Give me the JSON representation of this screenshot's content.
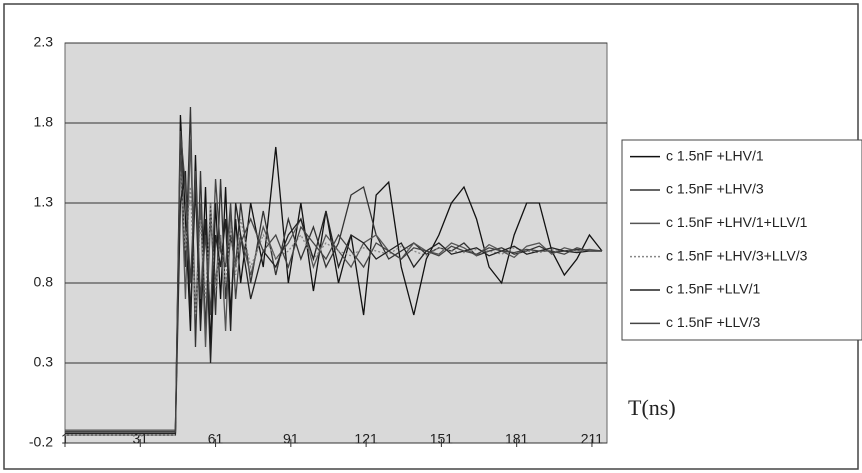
{
  "chart_data": {
    "type": "line",
    "annotation": "T(ns)",
    "x": [
      1,
      11,
      21,
      31,
      41,
      45,
      47,
      49,
      51,
      53,
      55,
      57,
      59,
      61,
      63,
      65,
      67,
      69,
      71,
      75,
      80,
      85,
      90,
      95,
      100,
      105,
      110,
      115,
      120,
      125,
      130,
      135,
      140,
      145,
      150,
      155,
      160,
      165,
      170,
      175,
      180,
      185,
      190,
      195,
      200,
      205,
      210,
      215
    ],
    "xlim": [
      1,
      217
    ],
    "xticks": [
      1,
      31,
      61,
      91,
      121,
      151,
      181,
      211
    ],
    "ylim": [
      -0.2,
      2.3
    ],
    "yticks": [
      -0.2,
      0.3,
      0.8,
      1.3,
      1.8,
      2.3
    ],
    "grid": true,
    "legend": "right",
    "plot_background": "#d9d9d9",
    "series": [
      {
        "name": "c 1.5nF +LHV/1",
        "color": "#111111",
        "line_style": "solid",
        "values": [
          -0.13,
          -0.13,
          -0.13,
          -0.13,
          -0.13,
          -0.13,
          1.85,
          1.2,
          0.5,
          1.6,
          0.6,
          1.4,
          0.4,
          1.3,
          0.7,
          1.4,
          0.6,
          1.2,
          0.8,
          1.3,
          0.9,
          1.65,
          0.8,
          1.3,
          0.75,
          1.25,
          0.8,
          1.1,
          0.6,
          1.35,
          1.43,
          0.9,
          0.6,
          0.95,
          1.1,
          1.3,
          1.4,
          1.2,
          0.9,
          0.8,
          1.1,
          1.3,
          1.3,
          1.0,
          0.85,
          0.95,
          1.1,
          1.0
        ]
      },
      {
        "name": "c 1.5nF +LHV/3",
        "color": "#333333",
        "line_style": "solid",
        "values": [
          -0.15,
          -0.15,
          -0.15,
          -0.15,
          -0.15,
          -0.15,
          1.7,
          0.9,
          1.9,
          0.4,
          1.5,
          0.5,
          1.3,
          0.6,
          1.45,
          0.7,
          1.1,
          0.9,
          1.3,
          0.8,
          1.25,
          0.85,
          1.2,
          0.95,
          1.15,
          0.9,
          1.05,
          1.35,
          1.4,
          1.1,
          0.95,
          1.0,
          1.05,
          0.98,
          1.02,
          1.0,
          1.05,
          0.97,
          1.0,
          1.02,
          0.98,
          1.0,
          1.03,
          0.99,
          1.0,
          1.01,
          1.0,
          1.0
        ]
      },
      {
        "name": "c 1.5nF +LHV/1+LLV/1",
        "color": "#555555",
        "line_style": "solid",
        "values": [
          -0.12,
          -0.12,
          -0.12,
          -0.12,
          -0.12,
          -0.12,
          1.6,
          0.7,
          1.7,
          0.6,
          1.3,
          0.4,
          1.2,
          0.8,
          1.1,
          0.5,
          1.25,
          0.9,
          1.1,
          0.85,
          1.15,
          0.95,
          1.05,
          1.2,
          0.9,
          1.1,
          1.0,
          0.9,
          1.05,
          1.1,
          1.0,
          0.95,
          1.05,
          1.0,
          0.98,
          1.05,
          1.02,
          0.97,
          1.04,
          1.0,
          0.96,
          1.03,
          1.05,
          0.98,
          1.02,
          1.0,
          1.01,
          1.0
        ]
      },
      {
        "name": "c 1.5nF +LHV/3+LLV/3",
        "color": "#888888",
        "line_style": "dotted",
        "values": [
          -0.15,
          -0.15,
          -0.15,
          -0.15,
          -0.15,
          -0.15,
          1.5,
          1.0,
          1.4,
          0.6,
          1.2,
          0.7,
          1.3,
          0.75,
          1.1,
          0.8,
          1.15,
          0.85,
          1.2,
          0.9,
          1.1,
          0.95,
          1.0,
          1.1,
          0.95,
          1.05,
          1.0,
          0.97,
          1.02,
          1.0,
          0.98,
          1.03,
          1.0,
          0.97,
          1.02,
          1.0,
          0.99,
          1.01,
          1.0,
          0.98,
          1.02,
          1.0,
          0.99,
          1.01,
          1.0,
          1.0,
          1.0,
          1.0
        ]
      },
      {
        "name": "c 1.5nF +LLV/1",
        "color": "#222222",
        "line_style": "solid",
        "values": [
          -0.14,
          -0.14,
          -0.14,
          -0.14,
          -0.14,
          -0.14,
          1.3,
          1.5,
          0.6,
          1.4,
          0.5,
          1.2,
          0.3,
          1.1,
          0.9,
          1.2,
          0.5,
          1.3,
          1.1,
          0.7,
          1.0,
          0.9,
          1.1,
          1.2,
          0.95,
          1.25,
          0.9,
          1.1,
          1.05,
          0.95,
          1.0,
          1.05,
          0.9,
          1.0,
          1.05,
          0.98,
          1.0,
          1.02,
          0.97,
          1.0,
          1.03,
          0.98,
          1.0,
          1.02,
          1.0,
          0.99,
          1.0,
          1.0
        ]
      },
      {
        "name": "c 1.5nF +LLV/3",
        "color": "#444444",
        "line_style": "solid",
        "values": [
          -0.13,
          -0.13,
          -0.13,
          -0.13,
          -0.13,
          -0.13,
          1.75,
          1.4,
          0.8,
          1.5,
          0.7,
          1.1,
          0.6,
          1.45,
          1.0,
          0.9,
          1.3,
          0.7,
          1.05,
          1.2,
          1.0,
          1.1,
          0.9,
          1.15,
          1.05,
          0.95,
          1.1,
          1.0,
          0.9,
          1.05,
          1.0,
          0.95,
          1.02,
          1.0,
          0.97,
          1.03,
          1.0,
          0.98,
          1.02,
          1.0,
          0.99,
          1.01,
          1.0,
          1.0,
          0.98,
          1.02,
          1.0,
          1.0
        ]
      }
    ]
  }
}
